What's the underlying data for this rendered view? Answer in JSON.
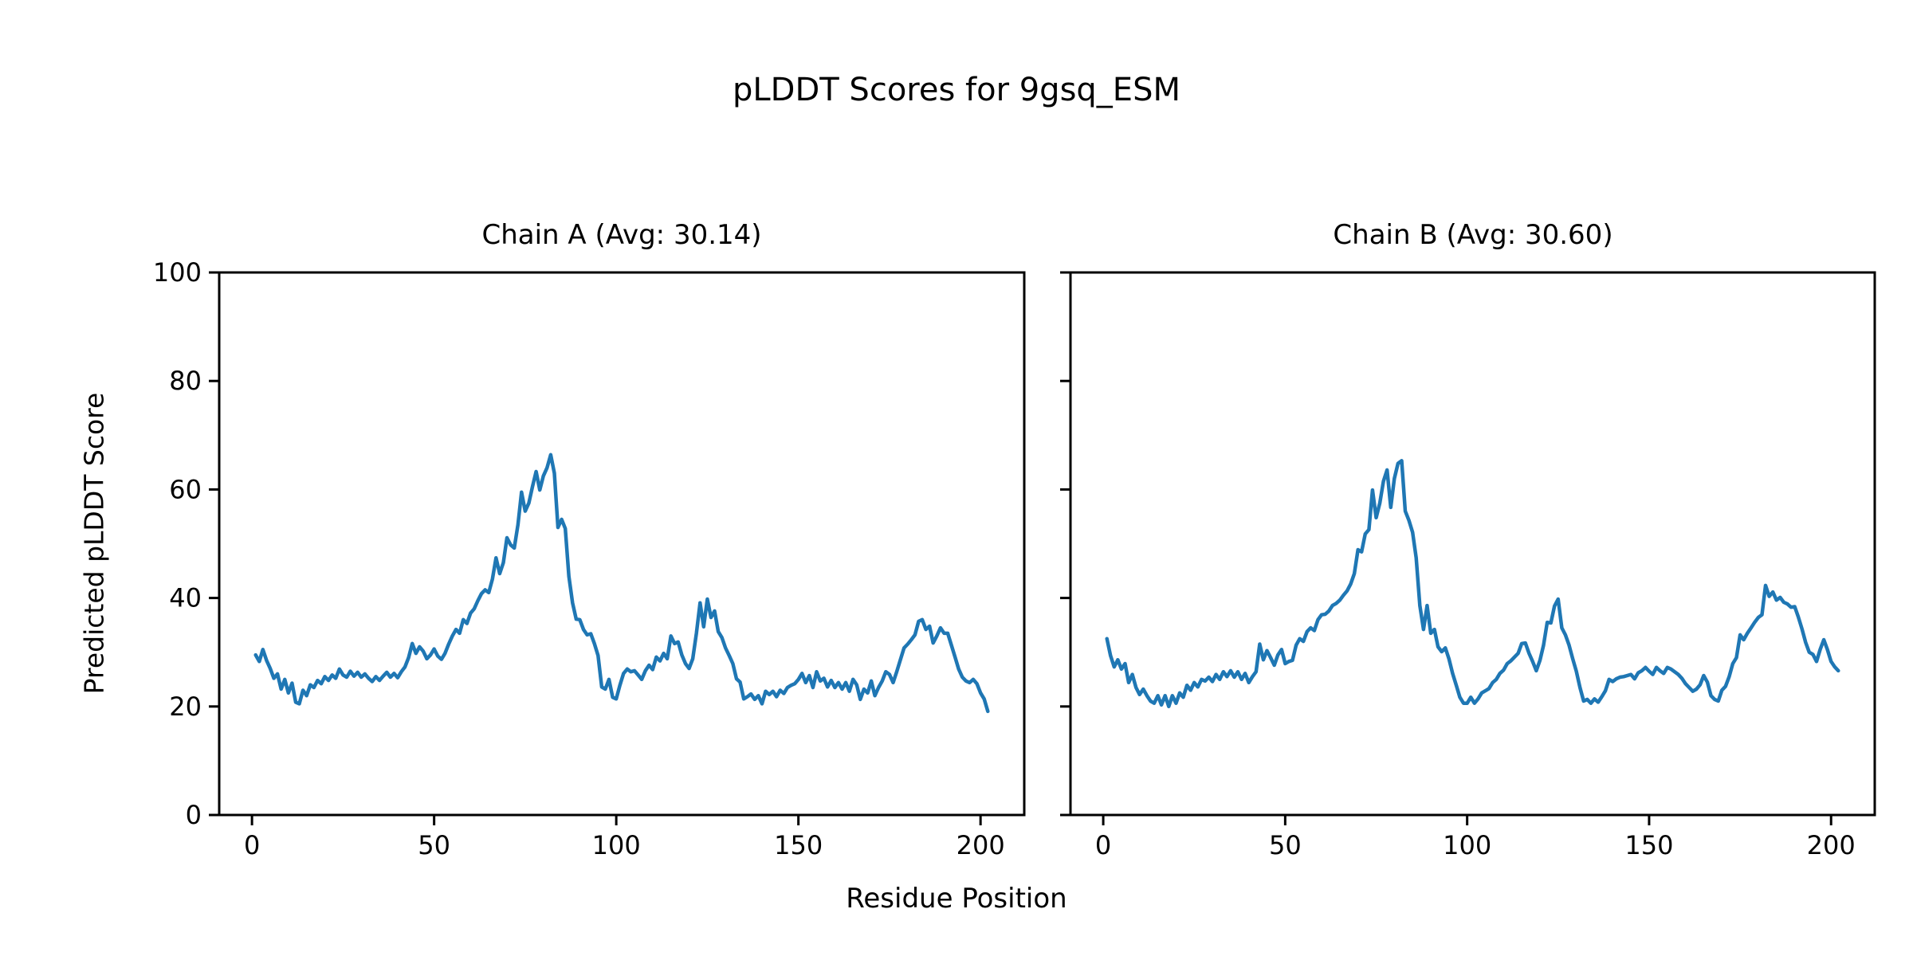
{
  "figure": {
    "suptitle": "pLDDT Scores for 9gsq_ESM",
    "xlabel": "Residue Position",
    "ylabel": "Predicted pLDDT Score",
    "background": "#ffffff",
    "line_color": "#1f77b4"
  },
  "chart_data": [
    {
      "type": "line",
      "title": "Chain A (Avg: 30.14)",
      "xlabel": "Residue Position",
      "ylabel": "Predicted pLDDT Score",
      "legend": "none",
      "grid": false,
      "x_start": 1,
      "xlim": [
        -9,
        212
      ],
      "ylim": [
        0,
        100
      ],
      "xticks": [
        0,
        50,
        100,
        150,
        200
      ],
      "yticks": [
        0,
        20,
        40,
        60,
        80,
        100
      ],
      "show_ytick_labels": true,
      "series": [
        {
          "name": "pLDDT",
          "color": "#1f77b4",
          "values": [
            29.5,
            28.3,
            30.5,
            28.5,
            27.0,
            25.2,
            26.0,
            23.2,
            25.0,
            22.5,
            24.3,
            20.8,
            20.5,
            23.0,
            22.0,
            24.0,
            23.5,
            24.8,
            24.2,
            25.5,
            24.8,
            25.8,
            25.2,
            26.9,
            25.8,
            25.4,
            26.5,
            25.6,
            26.3,
            25.4,
            26.0,
            25.2,
            24.6,
            25.5,
            24.8,
            25.6,
            26.3,
            25.4,
            26.1,
            25.3,
            26.4,
            27.3,
            29.0,
            31.6,
            29.8,
            31.0,
            30.2,
            28.8,
            29.5,
            30.6,
            29.3,
            28.7,
            29.8,
            31.5,
            33.0,
            34.2,
            33.5,
            36.0,
            35.3,
            37.2,
            38.0,
            39.5,
            40.8,
            41.5,
            41.0,
            43.5,
            47.4,
            44.5,
            46.5,
            51.1,
            49.8,
            49.2,
            53.5,
            59.5,
            56.0,
            57.5,
            60.5,
            63.3,
            59.9,
            62.5,
            64.0,
            66.4,
            63.0,
            53.0,
            54.5,
            52.8,
            44.0,
            39.1,
            36.1,
            36.0,
            34.2,
            33.2,
            33.4,
            31.6,
            29.4,
            23.6,
            23.2,
            25.0,
            21.7,
            21.4,
            23.9,
            26.1,
            26.9,
            26.4,
            26.6,
            25.8,
            25.0,
            26.6,
            27.6,
            26.8,
            29.1,
            28.4,
            29.8,
            28.8,
            33.0,
            31.6,
            31.9,
            29.5,
            27.9,
            27.0,
            28.8,
            33.5,
            39.1,
            34.7,
            39.8,
            36.4,
            37.6,
            33.8,
            32.7,
            30.8,
            29.4,
            27.9,
            25.1,
            24.5,
            21.4,
            21.8,
            22.3,
            21.3,
            22.0,
            20.5,
            22.8,
            22.2,
            22.8,
            21.8,
            23.0,
            22.4,
            23.5,
            23.9,
            24.2,
            25.0,
            26.1,
            24.4,
            25.7,
            23.5,
            26.4,
            24.7,
            25.2,
            23.6,
            24.8,
            23.5,
            24.4,
            23.2,
            24.4,
            22.8,
            25.0,
            24.0,
            21.3,
            23.2,
            22.5,
            24.7,
            22.0,
            23.5,
            24.7,
            26.4,
            25.9,
            24.4,
            26.4,
            28.6,
            30.8,
            31.5,
            32.3,
            33.2,
            35.7,
            36.0,
            34.2,
            34.8,
            31.7,
            33.0,
            34.5,
            33.5,
            33.5,
            31.3,
            29.1,
            26.9,
            25.4,
            24.7,
            24.4,
            25.0,
            24.2,
            22.5,
            21.4,
            19.1
          ]
        }
      ]
    },
    {
      "type": "line",
      "title": "Chain B (Avg: 30.60)",
      "xlabel": "Residue Position",
      "ylabel": "Predicted pLDDT Score",
      "legend": "none",
      "grid": false,
      "x_start": 1,
      "xlim": [
        -9,
        212
      ],
      "ylim": [
        0,
        100
      ],
      "xticks": [
        0,
        50,
        100,
        150,
        200
      ],
      "yticks": [
        0,
        20,
        40,
        60,
        80,
        100
      ],
      "show_ytick_labels": false,
      "series": [
        {
          "name": "pLDDT",
          "color": "#1f77b4",
          "values": [
            32.5,
            29.4,
            27.3,
            28.6,
            26.9,
            27.9,
            24.4,
            25.9,
            23.5,
            22.2,
            23.2,
            22.0,
            21.0,
            20.6,
            22.0,
            20.3,
            22.0,
            20.0,
            22.0,
            20.6,
            22.5,
            21.7,
            23.9,
            23.0,
            24.4,
            23.6,
            25.0,
            24.7,
            25.4,
            24.6,
            25.9,
            25.0,
            26.4,
            25.5,
            26.6,
            25.4,
            26.4,
            25.0,
            26.1,
            24.4,
            25.5,
            26.4,
            31.5,
            28.6,
            30.3,
            29.0,
            27.6,
            29.5,
            30.5,
            27.9,
            28.3,
            28.5,
            31.3,
            32.5,
            32.0,
            33.8,
            34.5,
            34.0,
            36.0,
            36.9,
            37.0,
            37.6,
            38.6,
            39.0,
            39.6,
            40.5,
            41.3,
            42.6,
            44.5,
            48.9,
            48.5,
            51.8,
            52.6,
            59.9,
            54.8,
            57.5,
            61.5,
            63.6,
            56.7,
            62.0,
            64.8,
            65.3,
            56.0,
            54.3,
            52.1,
            47.4,
            38.6,
            34.2,
            38.6,
            33.5,
            34.2,
            31.0,
            30.1,
            30.8,
            28.8,
            26.1,
            23.9,
            21.7,
            20.6,
            20.6,
            21.7,
            20.6,
            21.4,
            22.5,
            22.9,
            23.3,
            24.4,
            25.0,
            26.1,
            26.7,
            27.9,
            28.4,
            29.1,
            29.8,
            31.6,
            31.7,
            29.8,
            28.3,
            26.6,
            28.5,
            31.3,
            35.5,
            35.4,
            38.5,
            39.8,
            34.5,
            33.2,
            31.3,
            28.8,
            26.5,
            23.5,
            21.0,
            21.3,
            20.6,
            21.4,
            20.8,
            21.8,
            22.9,
            25.0,
            24.6,
            25.1,
            25.4,
            25.5,
            25.7,
            25.9,
            25.1,
            26.2,
            26.6,
            27.2,
            26.5,
            25.9,
            27.2,
            26.6,
            26.1,
            27.2,
            26.9,
            26.4,
            25.9,
            25.2,
            24.2,
            23.5,
            22.8,
            23.2,
            24.0,
            25.7,
            24.5,
            22.0,
            21.3,
            21.0,
            23.0,
            23.7,
            25.5,
            27.9,
            29.0,
            33.2,
            32.3,
            33.5,
            34.5,
            35.5,
            36.4,
            36.9,
            42.3,
            40.3,
            41.1,
            39.6,
            40.1,
            39.2,
            38.9,
            38.3,
            38.4,
            36.5,
            34.3,
            31.8,
            30.0,
            29.6,
            28.3,
            30.5,
            32.3,
            30.5,
            28.3,
            27.3,
            26.6
          ]
        }
      ]
    }
  ]
}
